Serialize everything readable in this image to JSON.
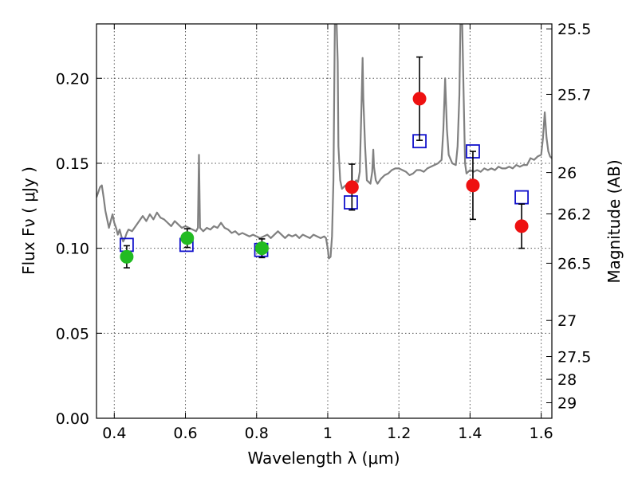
{
  "chart_data": {
    "type": "scatter",
    "xlabel": "Wavelength  λ (μm)",
    "ylabel": "Flux  Fν  ( μJy )",
    "y2label": "Magnitude (AB)",
    "xlim": [
      0.35,
      1.63
    ],
    "ylim": [
      0.0,
      0.232
    ],
    "grid": true,
    "x_ticks": [
      0.4,
      0.6,
      0.8,
      1.0,
      1.2,
      1.4,
      1.6
    ],
    "x_tick_labels": [
      "0.4",
      "0.6",
      "0.8",
      "1",
      "1.2",
      "1.4",
      "1.6"
    ],
    "y_ticks": [
      0.0,
      0.05,
      0.1,
      0.15,
      0.2
    ],
    "y_tick_labels": [
      "0.00",
      "0.05",
      "0.10",
      "0.15",
      "0.20"
    ],
    "y2_ticks": [
      25.5,
      25.7,
      26,
      26.2,
      26.5,
      27,
      27.5,
      28,
      29
    ],
    "y2_tick_labels": [
      "25.5",
      "25.7",
      "26",
      "26.2",
      "26.5",
      "27",
      "27.5",
      "28",
      "29"
    ],
    "colors": {
      "spectrum": "#808080",
      "green_points": "#22bb22",
      "red_points": "#ee1111",
      "model_squares": "#1111cc",
      "errorbars": "#000000",
      "grid": "#555555"
    },
    "series": [
      {
        "name": "spectrum",
        "kind": "line",
        "points": [
          [
            0.35,
            0.13
          ],
          [
            0.355,
            0.133
          ],
          [
            0.36,
            0.136
          ],
          [
            0.365,
            0.137
          ],
          [
            0.37,
            0.13
          ],
          [
            0.375,
            0.122
          ],
          [
            0.38,
            0.117
          ],
          [
            0.385,
            0.112
          ],
          [
            0.39,
            0.116
          ],
          [
            0.395,
            0.12
          ],
          [
            0.4,
            0.115
          ],
          [
            0.405,
            0.112
          ],
          [
            0.41,
            0.108
          ],
          [
            0.415,
            0.111
          ],
          [
            0.42,
            0.107
          ],
          [
            0.425,
            0.104
          ],
          [
            0.43,
            0.106
          ],
          [
            0.435,
            0.109
          ],
          [
            0.44,
            0.111
          ],
          [
            0.45,
            0.11
          ],
          [
            0.46,
            0.113
          ],
          [
            0.47,
            0.116
          ],
          [
            0.48,
            0.119
          ],
          [
            0.49,
            0.116
          ],
          [
            0.5,
            0.12
          ],
          [
            0.51,
            0.117
          ],
          [
            0.52,
            0.121
          ],
          [
            0.53,
            0.118
          ],
          [
            0.54,
            0.117
          ],
          [
            0.55,
            0.115
          ],
          [
            0.56,
            0.113
          ],
          [
            0.57,
            0.116
          ],
          [
            0.58,
            0.114
          ],
          [
            0.59,
            0.112
          ],
          [
            0.6,
            0.113
          ],
          [
            0.61,
            0.112
          ],
          [
            0.62,
            0.111
          ],
          [
            0.63,
            0.11
          ],
          [
            0.635,
            0.112
          ],
          [
            0.638,
            0.155
          ],
          [
            0.641,
            0.112
          ],
          [
            0.65,
            0.11
          ],
          [
            0.66,
            0.112
          ],
          [
            0.67,
            0.111
          ],
          [
            0.68,
            0.113
          ],
          [
            0.69,
            0.112
          ],
          [
            0.7,
            0.115
          ],
          [
            0.71,
            0.112
          ],
          [
            0.72,
            0.111
          ],
          [
            0.73,
            0.109
          ],
          [
            0.74,
            0.11
          ],
          [
            0.75,
            0.108
          ],
          [
            0.76,
            0.109
          ],
          [
            0.77,
            0.108
          ],
          [
            0.78,
            0.107
          ],
          [
            0.79,
            0.108
          ],
          [
            0.8,
            0.107
          ],
          [
            0.81,
            0.106
          ],
          [
            0.82,
            0.107
          ],
          [
            0.83,
            0.108
          ],
          [
            0.84,
            0.106
          ],
          [
            0.85,
            0.108
          ],
          [
            0.86,
            0.11
          ],
          [
            0.87,
            0.108
          ],
          [
            0.88,
            0.106
          ],
          [
            0.89,
            0.108
          ],
          [
            0.9,
            0.107
          ],
          [
            0.91,
            0.108
          ],
          [
            0.92,
            0.106
          ],
          [
            0.93,
            0.108
          ],
          [
            0.94,
            0.107
          ],
          [
            0.95,
            0.106
          ],
          [
            0.96,
            0.108
          ],
          [
            0.97,
            0.107
          ],
          [
            0.98,
            0.106
          ],
          [
            0.99,
            0.107
          ],
          [
            0.995,
            0.106
          ],
          [
            1.0,
            0.1
          ],
          [
            1.003,
            0.094
          ],
          [
            1.008,
            0.095
          ],
          [
            1.012,
            0.107
          ],
          [
            1.016,
            0.14
          ],
          [
            1.02,
            0.232
          ],
          [
            1.025,
            0.232
          ],
          [
            1.028,
            0.21
          ],
          [
            1.03,
            0.16
          ],
          [
            1.035,
            0.14
          ],
          [
            1.04,
            0.135
          ],
          [
            1.045,
            0.136
          ],
          [
            1.05,
            0.137
          ],
          [
            1.06,
            0.136
          ],
          [
            1.07,
            0.137
          ],
          [
            1.08,
            0.14
          ],
          [
            1.085,
            0.139
          ],
          [
            1.09,
            0.145
          ],
          [
            1.095,
            0.185
          ],
          [
            1.098,
            0.212
          ],
          [
            1.1,
            0.188
          ],
          [
            1.105,
            0.16
          ],
          [
            1.11,
            0.14
          ],
          [
            1.12,
            0.138
          ],
          [
            1.125,
            0.145
          ],
          [
            1.128,
            0.158
          ],
          [
            1.13,
            0.148
          ],
          [
            1.135,
            0.14
          ],
          [
            1.14,
            0.138
          ],
          [
            1.15,
            0.141
          ],
          [
            1.16,
            0.143
          ],
          [
            1.17,
            0.144
          ],
          [
            1.18,
            0.146
          ],
          [
            1.19,
            0.147
          ],
          [
            1.2,
            0.147
          ],
          [
            1.21,
            0.146
          ],
          [
            1.22,
            0.145
          ],
          [
            1.23,
            0.143
          ],
          [
            1.24,
            0.144
          ],
          [
            1.25,
            0.146
          ],
          [
            1.26,
            0.146
          ],
          [
            1.27,
            0.145
          ],
          [
            1.28,
            0.147
          ],
          [
            1.29,
            0.148
          ],
          [
            1.3,
            0.149
          ],
          [
            1.31,
            0.15
          ],
          [
            1.32,
            0.152
          ],
          [
            1.325,
            0.17
          ],
          [
            1.33,
            0.2
          ],
          [
            1.335,
            0.17
          ],
          [
            1.34,
            0.155
          ],
          [
            1.35,
            0.15
          ],
          [
            1.36,
            0.149
          ],
          [
            1.365,
            0.16
          ],
          [
            1.37,
            0.19
          ],
          [
            1.373,
            0.232
          ],
          [
            1.378,
            0.232
          ],
          [
            1.382,
            0.19
          ],
          [
            1.386,
            0.15
          ],
          [
            1.39,
            0.144
          ],
          [
            1.4,
            0.146
          ],
          [
            1.41,
            0.145
          ],
          [
            1.42,
            0.146
          ],
          [
            1.43,
            0.145
          ],
          [
            1.44,
            0.147
          ],
          [
            1.45,
            0.146
          ],
          [
            1.46,
            0.147
          ],
          [
            1.47,
            0.146
          ],
          [
            1.48,
            0.148
          ],
          [
            1.49,
            0.147
          ],
          [
            1.5,
            0.147
          ],
          [
            1.51,
            0.148
          ],
          [
            1.52,
            0.147
          ],
          [
            1.53,
            0.149
          ],
          [
            1.54,
            0.148
          ],
          [
            1.55,
            0.149
          ],
          [
            1.56,
            0.149
          ],
          [
            1.57,
            0.153
          ],
          [
            1.58,
            0.152
          ],
          [
            1.59,
            0.154
          ],
          [
            1.6,
            0.155
          ],
          [
            1.605,
            0.165
          ],
          [
            1.61,
            0.18
          ],
          [
            1.615,
            0.165
          ],
          [
            1.62,
            0.157
          ],
          [
            1.625,
            0.154
          ],
          [
            1.63,
            0.153
          ]
        ]
      },
      {
        "name": "green_photometry",
        "kind": "points",
        "marker": "circle",
        "points": [
          {
            "x": 0.435,
            "y": 0.095,
            "err": 0.0065
          },
          {
            "x": 0.605,
            "y": 0.106,
            "err": 0.0055
          },
          {
            "x": 0.815,
            "y": 0.1,
            "err": 0.0055
          }
        ]
      },
      {
        "name": "red_photometry",
        "kind": "points",
        "marker": "circle",
        "points": [
          {
            "x": 1.068,
            "y": 0.136,
            "err": 0.0135
          },
          {
            "x": 1.258,
            "y": 0.188,
            "err": 0.0245
          },
          {
            "x": 1.408,
            "y": 0.137,
            "err": 0.02
          },
          {
            "x": 1.545,
            "y": 0.113,
            "err": 0.013
          }
        ]
      },
      {
        "name": "model_photometry",
        "kind": "points",
        "marker": "square",
        "points": [
          {
            "x": 0.435,
            "y": 0.102
          },
          {
            "x": 0.603,
            "y": 0.102
          },
          {
            "x": 0.813,
            "y": 0.099
          },
          {
            "x": 1.065,
            "y": 0.127
          },
          {
            "x": 1.258,
            "y": 0.163
          },
          {
            "x": 1.408,
            "y": 0.157
          },
          {
            "x": 1.545,
            "y": 0.13
          }
        ]
      }
    ]
  }
}
